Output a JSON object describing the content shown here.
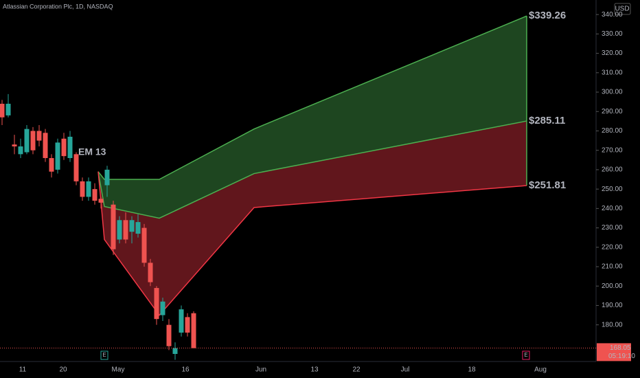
{
  "chart_data": {
    "type": "candlestick",
    "title": "Atlassian Corporation Plc, 1D, NASDAQ",
    "currency": "USD",
    "annotation": "EM 13",
    "x_tick_labels": [
      "11",
      "20",
      "May",
      "16",
      "Jun",
      "13",
      "22",
      "Jul",
      "18",
      "Aug"
    ],
    "open": [
      294,
      288,
      273,
      268,
      269,
      280,
      280,
      279,
      266,
      260,
      276,
      266,
      268,
      254,
      246,
      250,
      245,
      252,
      242,
      224,
      234,
      228,
      227,
      230,
      212,
      199,
      185,
      180,
      165,
      176,
      184,
      186
    ],
    "high": [
      296,
      299,
      278,
      276,
      283,
      282,
      283,
      281,
      268,
      276,
      279,
      280,
      269,
      256,
      256,
      253,
      246,
      262,
      244,
      236,
      238,
      236,
      237,
      232,
      214,
      200,
      194,
      183,
      171,
      190,
      186,
      187
    ],
    "low": [
      283,
      287,
      268,
      266,
      268,
      268,
      272,
      264,
      256,
      258,
      265,
      264,
      252,
      244,
      244,
      242,
      240,
      246,
      216,
      222,
      222,
      222,
      225,
      210,
      200,
      180,
      182,
      167,
      162,
      174,
      174,
      168
    ],
    "close": [
      287,
      294,
      272,
      272,
      281,
      270,
      275,
      266,
      259,
      274,
      267,
      277,
      254,
      246,
      254,
      244,
      243,
      260,
      219,
      234,
      224,
      234,
      233,
      212,
      202,
      183,
      192,
      169,
      168,
      188,
      176,
      168
    ],
    "up_color": "#26a69a",
    "down_color": "#ef5350",
    "projection": {
      "upper": {
        "values": [
          259,
          255,
          255,
          281,
          339.26
        ],
        "color": "#4caf50",
        "value_label": "$339.26"
      },
      "mid": {
        "values": [
          259,
          241,
          235,
          258,
          285.11
        ],
        "color": "#ffeb3b",
        "value_label": "$285.11"
      },
      "lower": {
        "values": [
          259,
          224,
          185,
          240.5,
          251.81
        ],
        "color": "#f23645",
        "value_label": "$251.81"
      }
    },
    "last_price": {
      "value": 168.05,
      "label": "168.05",
      "countdown": "05:19:10"
    },
    "event_marker": "E",
    "ylim": [
      161.1,
      347.5
    ],
    "yticks": [
      {
        "value": 180,
        "label": "180.00"
      },
      {
        "value": 190,
        "label": "190.00"
      },
      {
        "value": 200,
        "label": "200.00"
      },
      {
        "value": 210,
        "label": "210.00"
      },
      {
        "value": 220,
        "label": "220.00"
      },
      {
        "value": 230,
        "label": "230.00"
      },
      {
        "value": 240,
        "label": "240.00"
      },
      {
        "value": 250,
        "label": "250.00"
      },
      {
        "value": 260,
        "label": "260.00"
      },
      {
        "value": 270,
        "label": "270.00"
      },
      {
        "value": 280,
        "label": "280.00"
      },
      {
        "value": 290,
        "label": "290.00"
      },
      {
        "value": 300,
        "label": "300.00"
      },
      {
        "value": 310,
        "label": "310.00"
      },
      {
        "value": 320,
        "label": "320.00"
      },
      {
        "value": 330,
        "label": "330.00"
      },
      {
        "value": 340,
        "label": "340.00"
      }
    ]
  }
}
